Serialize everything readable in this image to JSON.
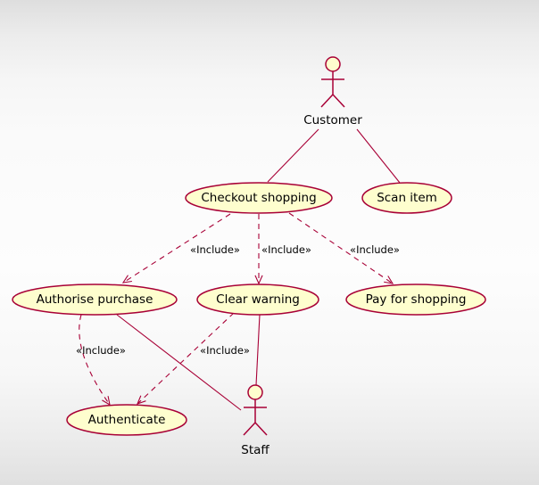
{
  "actors": [
    {
      "id": "customer",
      "label": "Customer"
    },
    {
      "id": "staff",
      "label": "Staff"
    }
  ],
  "use_cases": [
    {
      "id": "checkout",
      "label": "Checkout shopping"
    },
    {
      "id": "scan",
      "label": "Scan item"
    },
    {
      "id": "authorise",
      "label": "Authorise purchase"
    },
    {
      "id": "clear",
      "label": "Clear warning"
    },
    {
      "id": "pay",
      "label": "Pay for shopping"
    },
    {
      "id": "authenticate",
      "label": "Authenticate"
    }
  ],
  "associations": [
    {
      "from": "customer",
      "to": "checkout"
    },
    {
      "from": "customer",
      "to": "scan"
    },
    {
      "from": "staff",
      "to": "clear"
    },
    {
      "from": "staff",
      "to": "authorise"
    }
  ],
  "includes": [
    {
      "from": "checkout",
      "to": "authorise",
      "label": "«Include»"
    },
    {
      "from": "checkout",
      "to": "clear",
      "label": "«Include»"
    },
    {
      "from": "checkout",
      "to": "pay",
      "label": "«Include»"
    },
    {
      "from": "authorise",
      "to": "authenticate",
      "label": "«Include»"
    },
    {
      "from": "clear",
      "to": "authenticate",
      "label": "«Include»"
    }
  ],
  "colors": {
    "line": "#a80036",
    "fill": "#fefece",
    "text": "#000000"
  }
}
